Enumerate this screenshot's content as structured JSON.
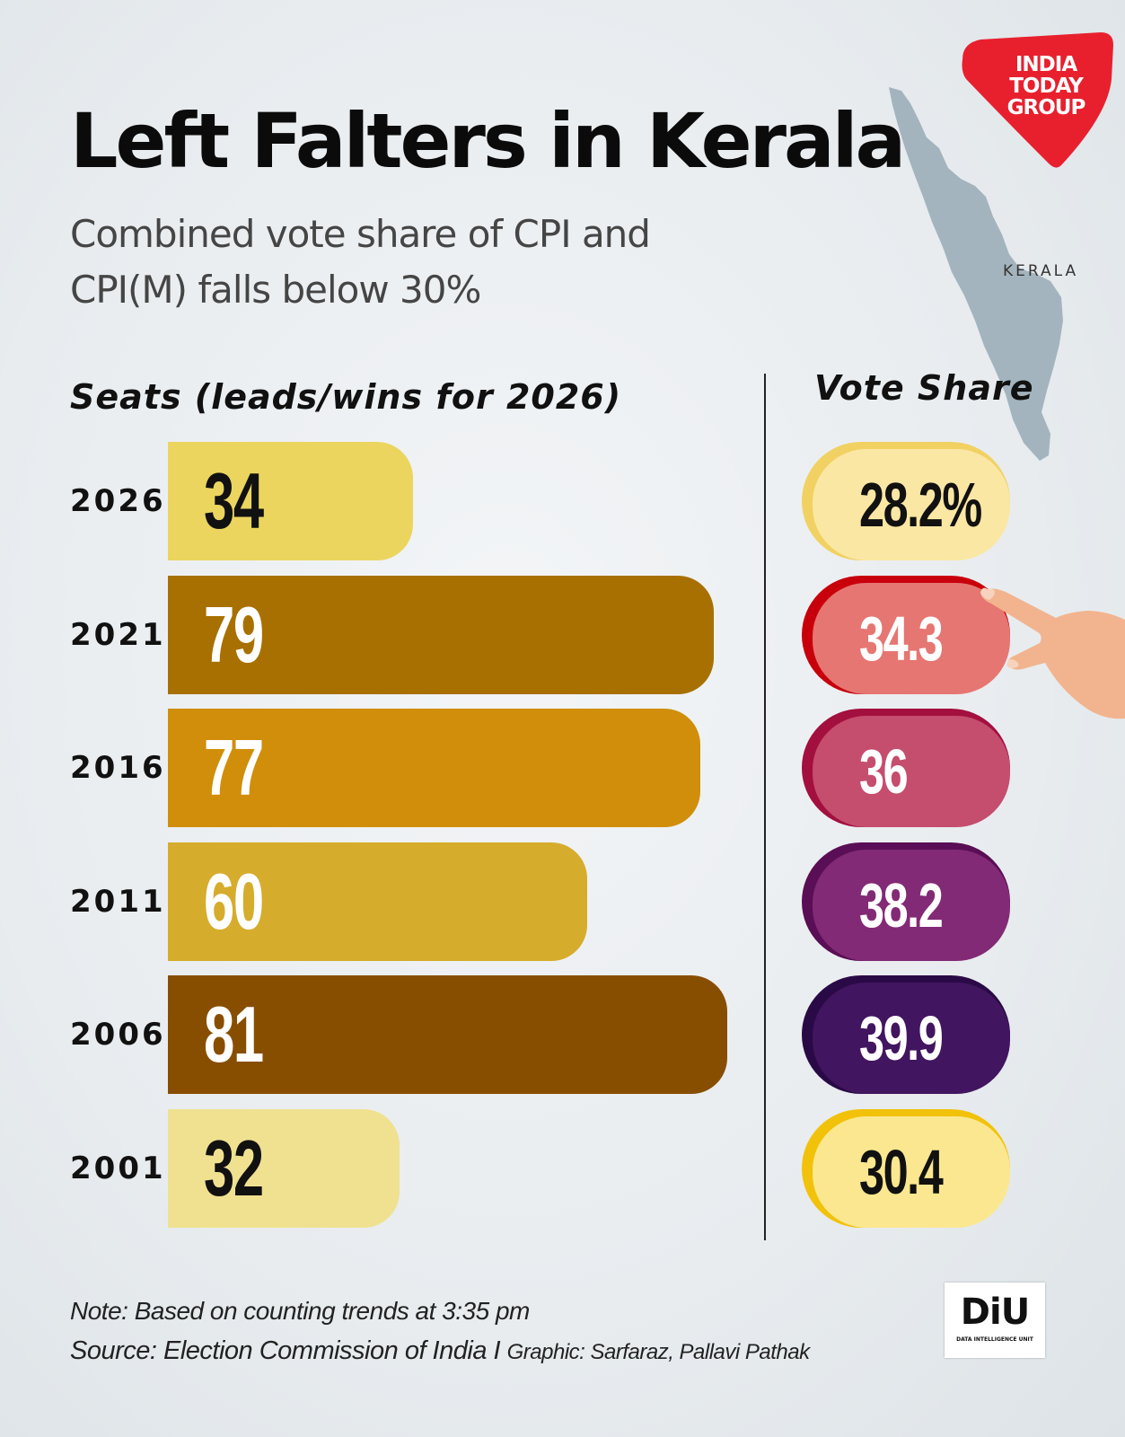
{
  "header": {
    "title": "Left Falters in Kerala",
    "subtitle": "Combined vote share of CPI and CPI(M) falls below 30%"
  },
  "brand": {
    "logo_lines": [
      "INDIA",
      "TODAY",
      "GROUP"
    ],
    "logo_color": "#e8202e",
    "map_label": "KERALA",
    "map_color": "#a3b4be",
    "diu_text": "DiU",
    "diu_subtext": "DATA INTELLIGENCE UNIT"
  },
  "chart_data": {
    "type": "bar",
    "orientation": "horizontal",
    "seats_label": "Seats (leads/wins for 2026)",
    "vote_share_label": "Vote Share",
    "categories": [
      "2026",
      "2021",
      "2016",
      "2011",
      "2006",
      "2001"
    ],
    "series": [
      {
        "name": "Seats (leads/wins for 2026)",
        "values": [
          34,
          79,
          77,
          60,
          81,
          32
        ],
        "labels": [
          "34",
          "79",
          "77",
          "60",
          "81",
          "32"
        ],
        "colors": [
          "#ebd55f",
          "#a87000",
          "#d08e0a",
          "#d6ac2c",
          "#884e00",
          "#f0e190"
        ],
        "label_colors": [
          "#111111",
          "#ffffff",
          "#ffffff",
          "#ffffff",
          "#ffffff",
          "#111111"
        ]
      },
      {
        "name": "Vote Share",
        "values": [
          28.2,
          34.3,
          36,
          38.2,
          39.9,
          30.4
        ],
        "labels": [
          "28.2%",
          "34.3",
          "36",
          "38.2",
          "39.9",
          "30.4"
        ],
        "colors": [
          "#fbe7a4",
          "#e67672",
          "#c54d6d",
          "#822a75",
          "#421560",
          "#fbe78f"
        ],
        "shadow_colors": [
          "#f1d162",
          "#c8000c",
          "#a30f3f",
          "#5a0e55",
          "#2a0a46",
          "#f2c20a"
        ],
        "label_colors": [
          "#111111",
          "#ffffff",
          "#ffffff",
          "#ffffff",
          "#ffffff",
          "#111111"
        ]
      }
    ],
    "xlim": [
      0,
      81
    ]
  },
  "footer": {
    "note": "Note: Based on counting trends at 3:35 pm",
    "source": "Source: Election Commission of India",
    "separator": " I ",
    "graphic": "Graphic:  Sarfaraz, Pallavi Pathak"
  }
}
